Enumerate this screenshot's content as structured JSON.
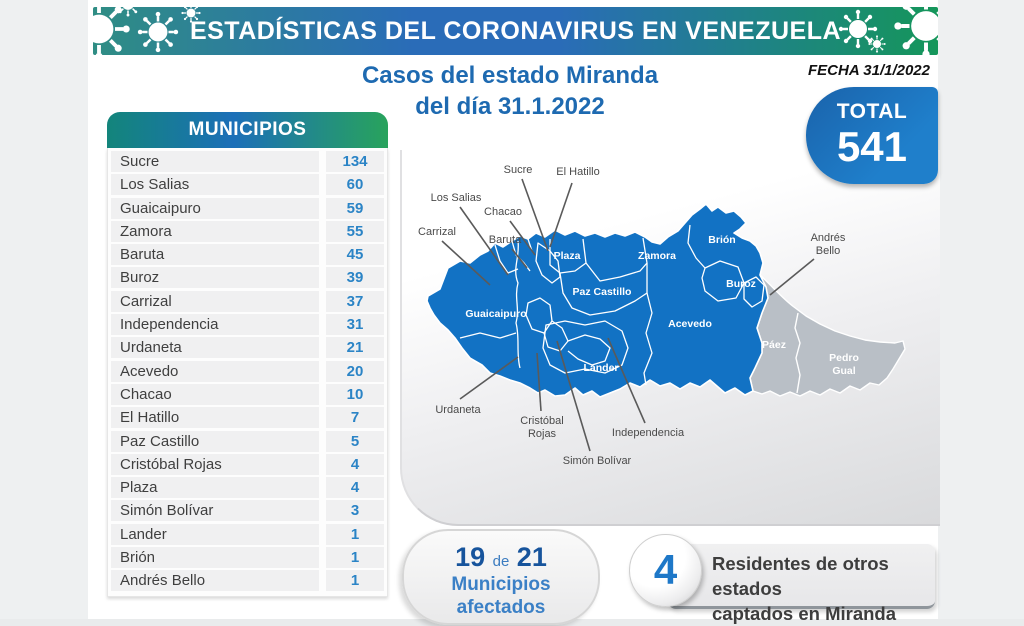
{
  "banner": {
    "title": "ESTADÍSTICAS DEL CORONAVIRUS EN VENEZUELA"
  },
  "header": {
    "title_line1": "Casos del estado Miranda",
    "title_line2": "del día 31.1.2022",
    "date_label": "FECHA 31/1/2022"
  },
  "total": {
    "label": "TOTAL",
    "value": "541",
    "color": "#1f7fcb"
  },
  "table": {
    "header": "MUNICIPIOS",
    "rows": [
      {
        "name": "Sucre",
        "value": "134"
      },
      {
        "name": "Los Salias",
        "value": "60"
      },
      {
        "name": "Guaicaipuro",
        "value": "59"
      },
      {
        "name": "Zamora",
        "value": "55"
      },
      {
        "name": "Baruta",
        "value": "45"
      },
      {
        "name": "Buroz",
        "value": "39"
      },
      {
        "name": "Carrizal",
        "value": "37"
      },
      {
        "name": "Independencia",
        "value": "31"
      },
      {
        "name": "Urdaneta",
        "value": "21"
      },
      {
        "name": "Acevedo",
        "value": "20"
      },
      {
        "name": "Chacao",
        "value": "10"
      },
      {
        "name": "El Hatillo",
        "value": "7"
      },
      {
        "name": "Paz Castillo",
        "value": "5"
      },
      {
        "name": "Cristóbal Rojas",
        "value": "4"
      },
      {
        "name": "Plaza",
        "value": "4"
      },
      {
        "name": "Simón Bolívar",
        "value": "3"
      },
      {
        "name": "Lander",
        "value": "1"
      },
      {
        "name": "Brión",
        "value": "1"
      },
      {
        "name": "Andrés Bello",
        "value": "1"
      }
    ]
  },
  "map": {
    "affected_color": "#1272c4",
    "unaffected_color": "#b9bfc6",
    "municipio_labels": [
      {
        "lines": [
          "Plaza"
        ]
      },
      {
        "lines": [
          "Zamora"
        ]
      },
      {
        "lines": [
          "Paz Castillo"
        ]
      },
      {
        "lines": [
          "Guaicaipuro"
        ]
      },
      {
        "lines": [
          "Acevedo"
        ]
      },
      {
        "lines": [
          "Brión"
        ]
      },
      {
        "lines": [
          "Buroz"
        ]
      },
      {
        "lines": [
          "Lander"
        ]
      },
      {
        "lines": [
          "Páez"
        ]
      },
      {
        "lines": [
          "Pedro",
          "Gual"
        ]
      }
    ],
    "callout_labels": [
      {
        "lines": [
          "Sucre"
        ]
      },
      {
        "lines": [
          "El Hatillo"
        ]
      },
      {
        "lines": [
          "Los Salias"
        ]
      },
      {
        "lines": [
          "Chacao"
        ]
      },
      {
        "lines": [
          "Carrizal"
        ]
      },
      {
        "lines": [
          "Baruta"
        ]
      },
      {
        "lines": [
          "Andrés",
          "Bello"
        ]
      },
      {
        "lines": [
          "Urdaneta"
        ]
      },
      {
        "lines": [
          "Cristóbal",
          "Rojas"
        ]
      },
      {
        "lines": [
          "Simón Bolívar"
        ]
      },
      {
        "lines": [
          "Independencia"
        ]
      }
    ]
  },
  "footer": {
    "affected": {
      "count": "19",
      "of": "de",
      "total": "21",
      "line1": "Municipios",
      "line2": "afectados"
    },
    "residents": {
      "count": "4",
      "line1": "Residentes de otros estados",
      "line2": "captados en Miranda"
    }
  }
}
